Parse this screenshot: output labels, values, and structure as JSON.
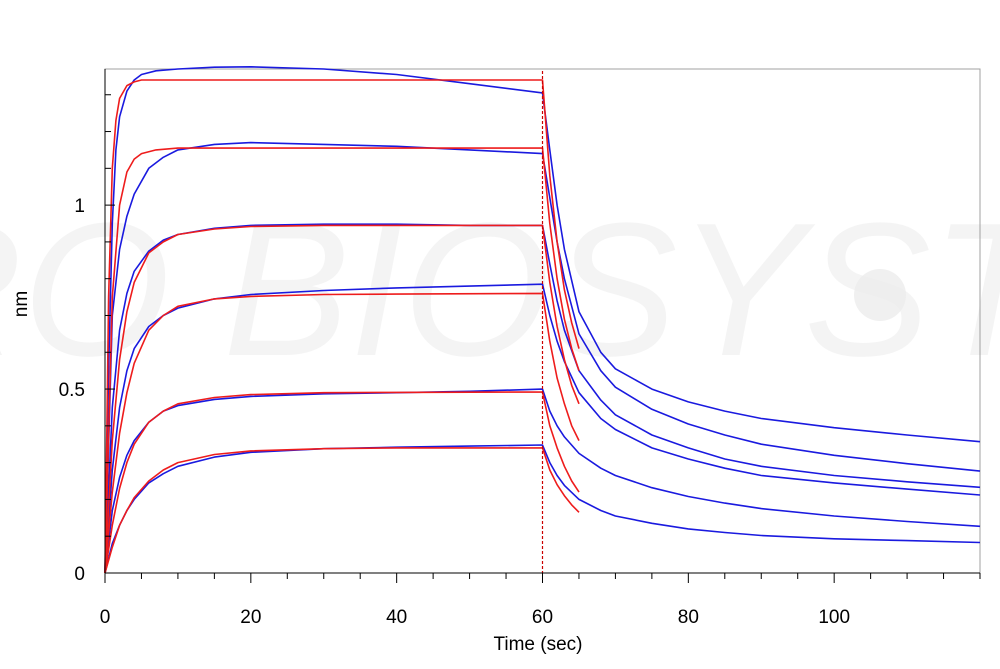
{
  "chart_data": {
    "type": "line",
    "title": "",
    "xlabel": "Time (sec)",
    "ylabel": "nm",
    "xlim": [
      0,
      120
    ],
    "ylim": [
      0,
      1.37
    ],
    "x_ticks": [
      0,
      20,
      40,
      60,
      80,
      100
    ],
    "x_tick_labels": [
      "0",
      "20",
      "40",
      "60",
      "80",
      "100"
    ],
    "y_ticks": [
      0,
      0.5,
      1
    ],
    "y_tick_labels": [
      "0",
      "0.5",
      "1"
    ],
    "grid": false,
    "legend": "none",
    "watermark": "ACRO BIOSYSTEMS",
    "association_end": 60,
    "colors": {
      "measured": "#1a1adf",
      "fit": "#ee1c1c",
      "marker": "#cc0000",
      "frame": "#a0a0a0"
    },
    "series": [
      {
        "role": "measured",
        "x": [
          0,
          0.5,
          1,
          1.5,
          2,
          3,
          4,
          5,
          7,
          10,
          15,
          20,
          30,
          40,
          50,
          60,
          61,
          62,
          63,
          65,
          68,
          70,
          75,
          80,
          85,
          90,
          100,
          110,
          120
        ],
        "values": [
          0,
          0.55,
          0.95,
          1.15,
          1.24,
          1.31,
          1.34,
          1.355,
          1.365,
          1.37,
          1.375,
          1.376,
          1.37,
          1.355,
          1.33,
          1.305,
          1.15,
          1.0,
          0.88,
          0.71,
          0.6,
          0.555,
          0.5,
          0.465,
          0.44,
          0.42,
          0.395,
          0.375,
          0.357
        ]
      },
      {
        "role": "measured",
        "x": [
          0,
          1,
          2,
          3,
          4,
          6,
          8,
          10,
          15,
          20,
          30,
          40,
          50,
          60,
          61,
          62,
          63,
          65,
          68,
          70,
          75,
          80,
          85,
          90,
          100,
          110,
          120
        ],
        "values": [
          0,
          0.7,
          0.88,
          0.97,
          1.03,
          1.1,
          1.13,
          1.15,
          1.165,
          1.17,
          1.165,
          1.16,
          1.15,
          1.14,
          1.02,
          0.9,
          0.8,
          0.65,
          0.55,
          0.505,
          0.445,
          0.405,
          0.375,
          0.35,
          0.32,
          0.297,
          0.277
        ]
      },
      {
        "role": "measured",
        "x": [
          0,
          1,
          2,
          3,
          4,
          6,
          8,
          10,
          15,
          20,
          30,
          40,
          50,
          60,
          61,
          62,
          63,
          65,
          68,
          70,
          75,
          80,
          85,
          90,
          100,
          110,
          120
        ],
        "values": [
          0,
          0.45,
          0.66,
          0.76,
          0.82,
          0.875,
          0.905,
          0.92,
          0.937,
          0.945,
          0.948,
          0.948,
          0.945,
          0.945,
          0.84,
          0.74,
          0.66,
          0.55,
          0.47,
          0.43,
          0.375,
          0.34,
          0.31,
          0.29,
          0.265,
          0.248,
          0.233
        ]
      },
      {
        "role": "measured",
        "x": [
          0,
          1,
          2,
          3,
          4,
          6,
          8,
          10,
          15,
          20,
          30,
          40,
          50,
          60,
          61,
          62,
          63,
          65,
          68,
          70,
          75,
          80,
          85,
          90,
          100,
          110,
          120
        ],
        "values": [
          0,
          0.28,
          0.45,
          0.55,
          0.61,
          0.67,
          0.7,
          0.72,
          0.745,
          0.757,
          0.768,
          0.775,
          0.78,
          0.785,
          0.7,
          0.63,
          0.575,
          0.49,
          0.42,
          0.39,
          0.34,
          0.31,
          0.285,
          0.265,
          0.245,
          0.228,
          0.212
        ]
      },
      {
        "role": "measured",
        "x": [
          0,
          1,
          2,
          3,
          4,
          6,
          8,
          10,
          15,
          20,
          30,
          40,
          50,
          60,
          61,
          62,
          63,
          65,
          68,
          70,
          75,
          80,
          85,
          90,
          100,
          110,
          120
        ],
        "values": [
          0,
          0.17,
          0.26,
          0.32,
          0.36,
          0.41,
          0.44,
          0.455,
          0.472,
          0.48,
          0.487,
          0.49,
          0.494,
          0.5,
          0.44,
          0.4,
          0.37,
          0.325,
          0.285,
          0.265,
          0.232,
          0.208,
          0.19,
          0.175,
          0.155,
          0.14,
          0.127
        ]
      },
      {
        "role": "measured",
        "x": [
          0,
          1,
          2,
          3,
          4,
          6,
          8,
          10,
          15,
          20,
          30,
          40,
          50,
          60,
          61,
          62,
          63,
          65,
          68,
          70,
          75,
          80,
          85,
          90,
          100,
          110,
          120
        ],
        "values": [
          0,
          0.08,
          0.13,
          0.17,
          0.2,
          0.245,
          0.27,
          0.29,
          0.315,
          0.328,
          0.338,
          0.342,
          0.345,
          0.348,
          0.3,
          0.265,
          0.238,
          0.2,
          0.17,
          0.155,
          0.135,
          0.12,
          0.11,
          0.102,
          0.093,
          0.088,
          0.083
        ]
      },
      {
        "role": "fit",
        "x": [
          0,
          0.5,
          1,
          1.5,
          2,
          3,
          4,
          5,
          7,
          10,
          20,
          40,
          60,
          61,
          62,
          63,
          64,
          65
        ],
        "values": [
          0,
          0.75,
          1.1,
          1.23,
          1.29,
          1.325,
          1.335,
          1.34,
          1.34,
          1.34,
          1.34,
          1.34,
          1.34,
          1.08,
          0.9,
          0.77,
          0.68,
          0.61
        ]
      },
      {
        "role": "fit",
        "x": [
          0,
          1,
          2,
          3,
          4,
          5,
          7,
          10,
          15,
          20,
          40,
          60,
          61,
          62,
          63,
          64,
          65
        ],
        "values": [
          0,
          0.75,
          1.0,
          1.09,
          1.125,
          1.14,
          1.15,
          1.155,
          1.155,
          1.155,
          1.155,
          1.155,
          0.95,
          0.8,
          0.69,
          0.61,
          0.55
        ]
      },
      {
        "role": "fit",
        "x": [
          0,
          1,
          2,
          3,
          4,
          6,
          8,
          10,
          15,
          20,
          30,
          40,
          60,
          61,
          62,
          63,
          64,
          65
        ],
        "values": [
          0,
          0.36,
          0.58,
          0.71,
          0.79,
          0.87,
          0.9,
          0.92,
          0.935,
          0.942,
          0.945,
          0.945,
          0.945,
          0.79,
          0.67,
          0.58,
          0.51,
          0.46
        ]
      },
      {
        "role": "fit",
        "x": [
          0,
          1,
          2,
          3,
          4,
          6,
          8,
          10,
          15,
          20,
          30,
          40,
          60,
          61,
          62,
          63,
          64,
          65
        ],
        "values": [
          0,
          0.22,
          0.38,
          0.49,
          0.57,
          0.66,
          0.7,
          0.725,
          0.745,
          0.752,
          0.757,
          0.758,
          0.76,
          0.63,
          0.53,
          0.46,
          0.4,
          0.36
        ]
      },
      {
        "role": "fit",
        "x": [
          0,
          1,
          2,
          3,
          4,
          6,
          8,
          10,
          15,
          20,
          30,
          40,
          60,
          61,
          62,
          63,
          64,
          65
        ],
        "values": [
          0,
          0.13,
          0.23,
          0.3,
          0.35,
          0.41,
          0.44,
          0.46,
          0.477,
          0.485,
          0.49,
          0.491,
          0.492,
          0.4,
          0.34,
          0.29,
          0.25,
          0.22
        ]
      },
      {
        "role": "fit",
        "x": [
          0,
          1,
          2,
          3,
          4,
          6,
          8,
          10,
          15,
          20,
          30,
          40,
          60,
          61,
          62,
          63,
          64,
          65
        ],
        "values": [
          0,
          0.07,
          0.13,
          0.17,
          0.205,
          0.25,
          0.28,
          0.3,
          0.322,
          0.332,
          0.338,
          0.34,
          0.34,
          0.28,
          0.24,
          0.21,
          0.185,
          0.165
        ]
      }
    ]
  }
}
